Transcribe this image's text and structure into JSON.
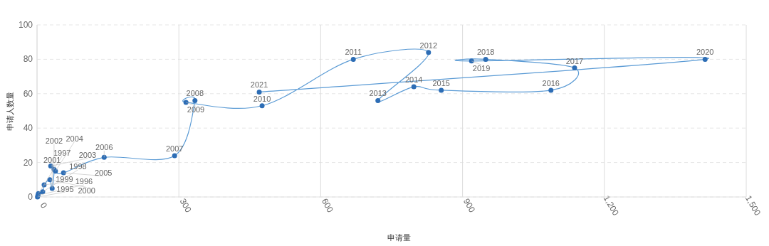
{
  "chart_data": {
    "type": "line",
    "xlabel": "申请量",
    "ylabel": "申请人数量",
    "xlim": [
      0,
      1500
    ],
    "ylim": [
      0,
      100
    ],
    "xticks": [
      0,
      300,
      600,
      900,
      {
        "value": 1200,
        "label": "1,200"
      },
      {
        "value": 1500,
        "label": "1,500"
      }
    ],
    "yticks": [
      0,
      20,
      40,
      60,
      80,
      100
    ],
    "grid": true,
    "marker": "circle",
    "line_style": "solid",
    "series": [
      {
        "color": "#2d6db5",
        "x": [
          1,
          2,
          3,
          12,
          15,
          27,
          32,
          36,
          29,
          39,
          56,
          142,
          291,
          334,
          315,
          476,
          669,
          828,
          721,
          797,
          855,
          1087,
          1137,
          949,
          919,
          1413,
          470
        ],
        "values": [
          0,
          1,
          2,
          3,
          7,
          10,
          5,
          16,
          18,
          15,
          14,
          23,
          24,
          56,
          55,
          53,
          80,
          84,
          56,
          64,
          62,
          62,
          75,
          80,
          79,
          80,
          61
        ]
      }
    ],
    "annotations": [
      {
        "text": "1995",
        "x": 1,
        "y": 0
      },
      {
        "text": "1996",
        "x": 2,
        "y": 1
      },
      {
        "text": "1997",
        "x": 3,
        "y": 2
      },
      {
        "text": "1998",
        "x": 12,
        "y": 3
      },
      {
        "text": "1999",
        "x": 15,
        "y": 7
      },
      {
        "text": "2000",
        "x": 27,
        "y": 10
      },
      {
        "text": "2001",
        "x": 32,
        "y": 5
      },
      {
        "text": "2002",
        "x": 36,
        "y": 16
      },
      {
        "text": "2003",
        "x": 29,
        "y": 18
      },
      {
        "text": "2004",
        "x": 39,
        "y": 15
      },
      {
        "text": "2005",
        "x": 56,
        "y": 14
      },
      {
        "text": "2006",
        "x": 142,
        "y": 23
      },
      {
        "text": "2007",
        "x": 291,
        "y": 24
      },
      {
        "text": "2008",
        "x": 334,
        "y": 56
      },
      {
        "text": "2009",
        "x": 315,
        "y": 55
      },
      {
        "text": "2010",
        "x": 476,
        "y": 53
      },
      {
        "text": "2011",
        "x": 669,
        "y": 80
      },
      {
        "text": "2012",
        "x": 828,
        "y": 84
      },
      {
        "text": "2013",
        "x": 721,
        "y": 56
      },
      {
        "text": "2014",
        "x": 797,
        "y": 64
      },
      {
        "text": "2015",
        "x": 855,
        "y": 62
      },
      {
        "text": "2016",
        "x": 1087,
        "y": 62
      },
      {
        "text": "2017",
        "x": 1137,
        "y": 75
      },
      {
        "text": "2018",
        "x": 949,
        "y": 80
      },
      {
        "text": "2019",
        "x": 919,
        "y": 79
      },
      {
        "text": "2020",
        "x": 1413,
        "y": 80
      },
      {
        "text": "2021",
        "x": 470,
        "y": 61
      }
    ]
  }
}
